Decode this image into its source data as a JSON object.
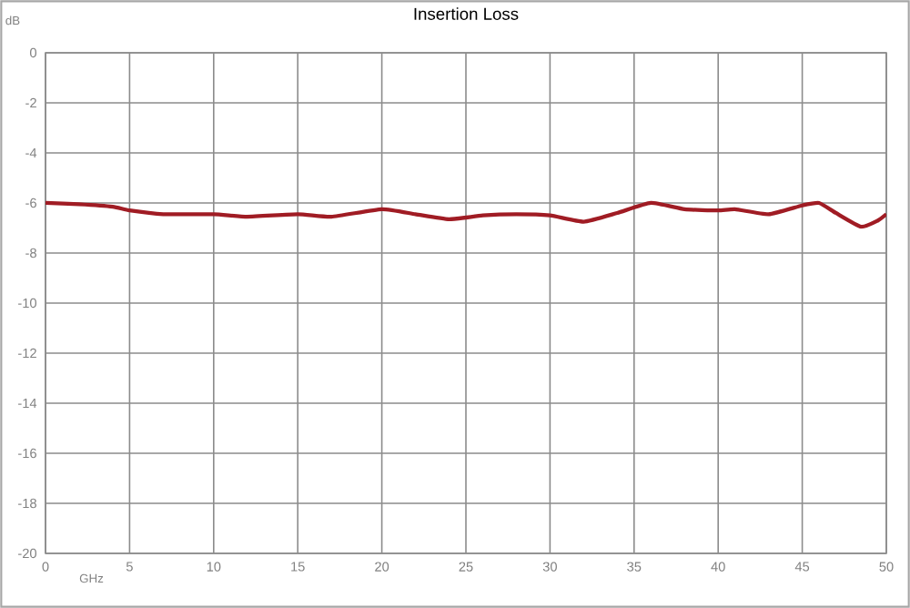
{
  "chart_data": {
    "type": "line",
    "title": "Insertion Loss",
    "xlabel": "GHz",
    "ylabel": "dB",
    "x": [
      0,
      2,
      4,
      5,
      7,
      10,
      12,
      15,
      17,
      20,
      22,
      24,
      26,
      28,
      30,
      32,
      34,
      36,
      38,
      40,
      41,
      43,
      45,
      46,
      47,
      48.5,
      49.5,
      50
    ],
    "series": [
      {
        "color": "#a01c24",
        "values": [
          -6.0,
          -6.05,
          -6.15,
          -6.3,
          -6.45,
          -6.45,
          -6.55,
          -6.45,
          -6.55,
          -6.25,
          -6.45,
          -6.65,
          -6.5,
          -6.45,
          -6.5,
          -6.75,
          -6.4,
          -6.0,
          -6.25,
          -6.3,
          -6.25,
          -6.45,
          -6.1,
          -6.0,
          -6.4,
          -6.95,
          -6.7,
          -6.45
        ]
      }
    ],
    "xlim": [
      0,
      50
    ],
    "xticks": [
      0,
      5,
      10,
      15,
      20,
      25,
      30,
      35,
      40,
      45,
      50
    ],
    "ylim": [
      -20,
      0
    ],
    "yticks": [
      -20,
      -18,
      -16,
      -14,
      -12,
      -10,
      -8,
      -6,
      -4,
      -2,
      0
    ],
    "grid": true,
    "marker": "none",
    "line_style": "solid"
  }
}
